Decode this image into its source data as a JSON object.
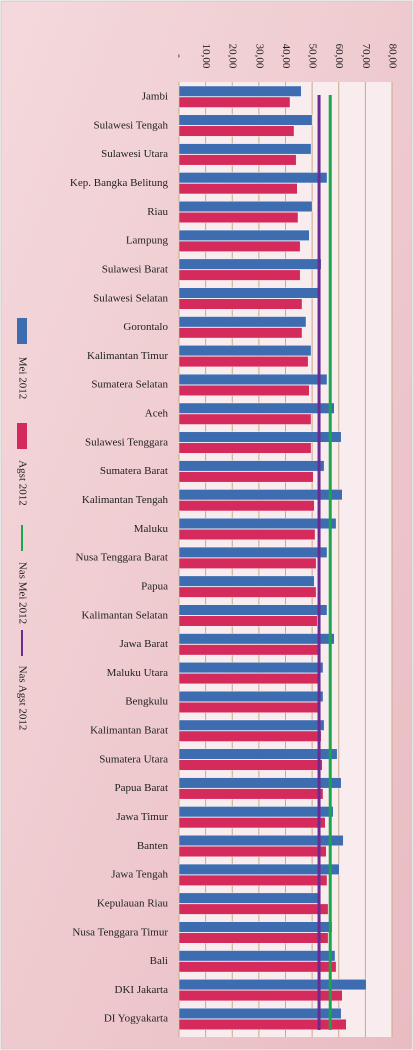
{
  "chart_data": {
    "type": "bar",
    "orientation": "horizontal",
    "categories": [
      "Jambi",
      "Sulawesi Tengah",
      "Sulawesi Utara",
      "Kep. Bangka Belitung",
      "Riau",
      "Lampung",
      "Sulawesi Barat",
      "Sulawesi Selatan",
      "Gorontalo",
      "Kalimantan Timur",
      "Sumatera Selatan",
      "Aceh",
      "Sulawesi Tenggara",
      "Sumatera Barat",
      "Kalimantan Tengah",
      "Maluku",
      "Nusa Tenggara  Barat",
      "Papua",
      "Kalimantan Selatan",
      "Jawa Barat",
      "Maluku Utara",
      "Bengkulu",
      "Kalimantan Barat",
      "Sumatera  Utara",
      "Papua Barat",
      "Jawa Timur",
      "Banten",
      "Jawa Tengah",
      "Kepulauan Riau",
      "Nusa Tenggara Timur",
      "Bali",
      "DKI Jakarta",
      "DI Yogyakarta"
    ],
    "series": [
      {
        "name": "Mei 2012",
        "color": "#3d6db0",
        "values": [
          45.9,
          50,
          49.6,
          55.6,
          50,
          48.9,
          53.4,
          52.6,
          47.7,
          49.6,
          55.6,
          58.3,
          60.9,
          54.5,
          61.3,
          59,
          55.6,
          50.8,
          55.6,
          58.3,
          54.1,
          54.1,
          54.5,
          59.4,
          60.9,
          57.9,
          61.7,
          60.2,
          52.3,
          57.5,
          58.6,
          70.3,
          60.9
        ]
      },
      {
        "name": "Agst 2012",
        "color": "#d42a5c",
        "values": [
          41.7,
          43.2,
          44,
          44.4,
          44.7,
          45.5,
          45.5,
          46.2,
          46.2,
          48.5,
          48.9,
          49.6,
          49.6,
          50.4,
          50.8,
          51.1,
          51.5,
          51.5,
          51.9,
          52.3,
          52.6,
          53,
          53.4,
          53.8,
          54.1,
          54.9,
          55.3,
          55.6,
          56,
          56,
          59,
          61.3,
          62.8
        ]
      }
    ],
    "reference_lines": [
      {
        "name": "Nas Mei 2012",
        "color": "#1aa64a",
        "value": 56.8
      },
      {
        "name": "Nas Agst 2012",
        "color": "#6a2c91",
        "value": 52.6
      }
    ],
    "xlim": [
      0,
      80
    ],
    "xticks": [
      {
        "value": 0,
        "label": "-"
      },
      {
        "value": 10,
        "label": "10,00"
      },
      {
        "value": 20,
        "label": "20,00"
      },
      {
        "value": 30,
        "label": "30,00"
      },
      {
        "value": 40,
        "label": "40,00"
      },
      {
        "value": 50,
        "label": "50,00"
      },
      {
        "value": 60,
        "label": "60,00"
      },
      {
        "value": 70,
        "label": "70,00"
      },
      {
        "value": 80,
        "label": "80,00"
      }
    ],
    "grid": true
  }
}
